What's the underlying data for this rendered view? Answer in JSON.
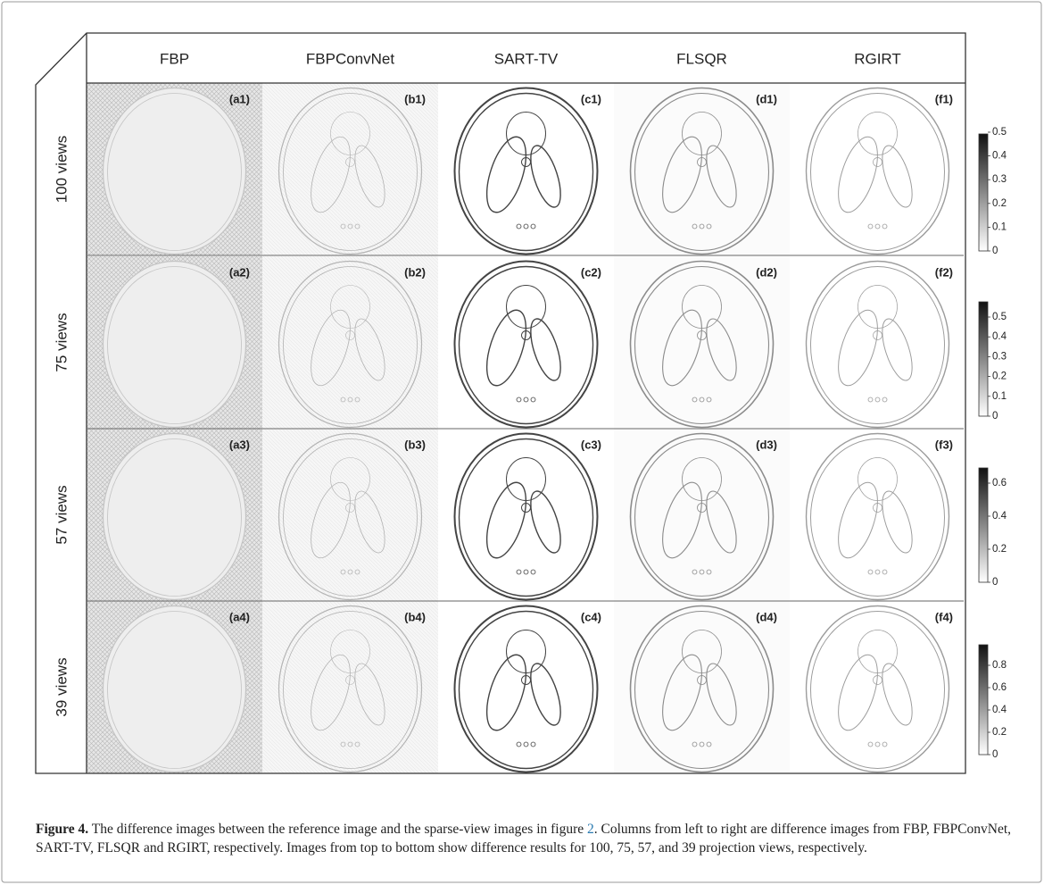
{
  "header": {
    "columns": [
      "FBP",
      "FBPConvNet",
      "SART-TV",
      "FLSQR",
      "RGIRT"
    ]
  },
  "rows": [
    {
      "label": "100 views",
      "panels": [
        "(a1)",
        "(b1)",
        "(c1)",
        "(d1)",
        "(f1)"
      ],
      "colorbar_ticks": [
        0,
        0.1,
        0.2,
        0.3,
        0.4,
        0.5
      ]
    },
    {
      "label": "75 views",
      "panels": [
        "(a2)",
        "(b2)",
        "(c2)",
        "(d2)",
        "(f2)"
      ],
      "colorbar_ticks": [
        0,
        0.1,
        0.2,
        0.3,
        0.4,
        0.5
      ]
    },
    {
      "label": "57 views",
      "panels": [
        "(a3)",
        "(b3)",
        "(c3)",
        "(d3)",
        "(f3)"
      ],
      "colorbar_ticks": [
        0,
        0.2,
        0.4,
        0.6
      ]
    },
    {
      "label": "39 views",
      "panels": [
        "(a4)",
        "(b4)",
        "(c4)",
        "(d4)",
        "(f4)"
      ],
      "colorbar_ticks": [
        0,
        0.2,
        0.4,
        0.6,
        0.8
      ]
    }
  ],
  "caption": {
    "label": "Figure 4.",
    "text_before": " The difference images between the reference image and the sparse-view images in figure ",
    "reference": "2",
    "text_after": ". Columns from left to right are difference images from FBP, FBPConvNet, SART-TV, FLSQR and RGIRT, respectively. Images from top to bottom show difference results for 100, 75, 57, and 39 projection views, respectively."
  }
}
